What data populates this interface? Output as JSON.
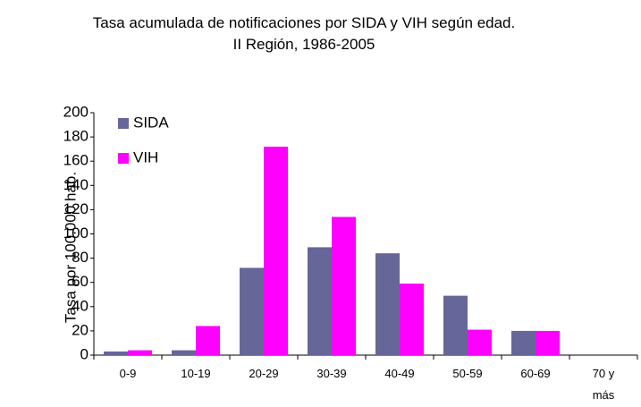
{
  "chart_data": {
    "type": "bar",
    "title": "Tasa acumulada de notificaciones por SIDA y VIH según edad.    II Región, 1986-2005",
    "y_label": "Tasa por 100.000 hab.",
    "categories": [
      "0-9",
      "10-19",
      "20-29",
      "30-39",
      "40-49",
      "50-59",
      "60-69",
      "70 y más"
    ],
    "series": [
      {
        "name": "SIDA",
        "color": "#666699",
        "values": [
          3,
          4,
          72,
          89,
          84,
          49,
          20,
          0
        ]
      },
      {
        "name": "VIH",
        "color": "#ff00ff",
        "values": [
          4,
          24,
          172,
          114,
          59,
          21,
          20,
          0
        ]
      }
    ],
    "ylim": [
      0,
      200
    ],
    "yticks": [
      0,
      20,
      40,
      60,
      80,
      100,
      120,
      140,
      160,
      180,
      200
    ],
    "grid": false,
    "legend": "top-left"
  }
}
